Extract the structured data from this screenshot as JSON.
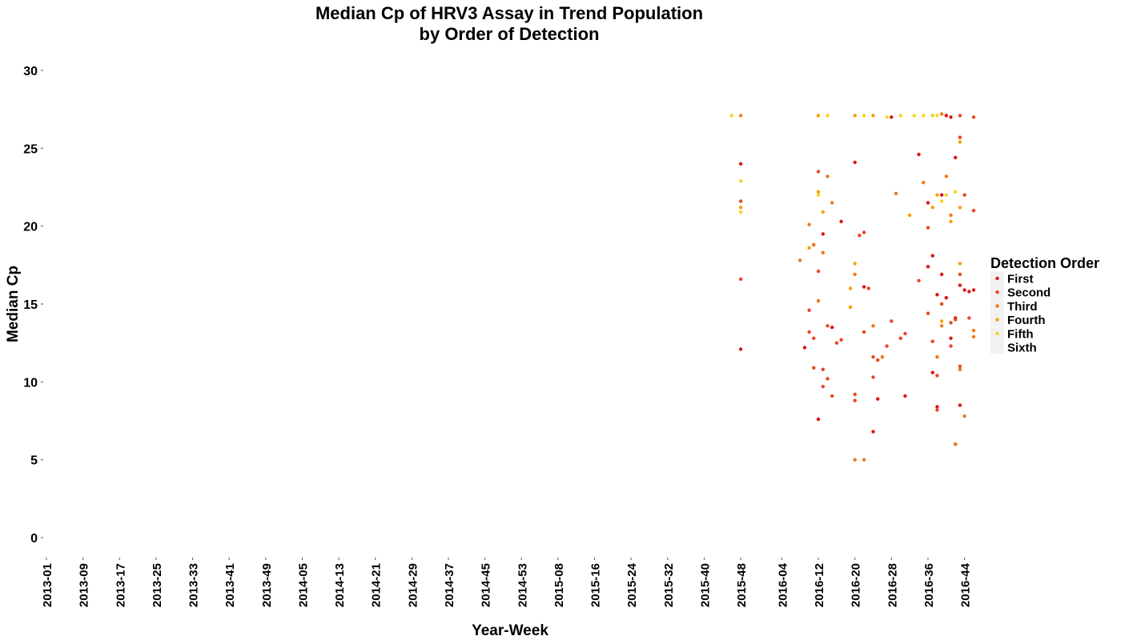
{
  "chart_data": {
    "type": "scatter",
    "title_line1": "Median Cp of HRV3 Assay in Trend Population",
    "title_line2": "by Order of Detection",
    "xlabel": "Year-Week",
    "ylabel": "Median Cp",
    "ylim": [
      0,
      30
    ],
    "yticks": [
      0,
      5,
      10,
      15,
      20,
      25,
      30
    ],
    "xticks": [
      "2013-01",
      "2013-09",
      "2013-17",
      "2013-25",
      "2013-33",
      "2013-41",
      "2013-49",
      "2014-05",
      "2014-13",
      "2014-21",
      "2014-29",
      "2014-37",
      "2014-45",
      "2014-53",
      "2015-08",
      "2015-16",
      "2015-24",
      "2015-32",
      "2015-40",
      "2015-48",
      "2016-04",
      "2016-12",
      "2016-20",
      "2016-28",
      "2016-36",
      "2016-44"
    ],
    "grid": false,
    "legend": {
      "title": "Detection Order",
      "placement": "right",
      "entries": [
        {
          "name": "First",
          "color": "#dd1414"
        },
        {
          "name": "Second",
          "color": "#e8461e"
        },
        {
          "name": "Third",
          "color": "#f07818"
        },
        {
          "name": "Fourth",
          "color": "#f5a000"
        },
        {
          "name": "Fifth",
          "color": "#f8d21e"
        },
        {
          "name": "Sixth",
          "color": "#ececec"
        }
      ]
    },
    "series": [
      {
        "name": "First",
        "color": "#dd1414",
        "points": [
          [
            "2015-48",
            24.0
          ],
          [
            "2015-48",
            12.1
          ],
          [
            "2016-09",
            12.2
          ],
          [
            "2016-11",
            18.8
          ],
          [
            "2016-12",
            7.6
          ],
          [
            "2016-13",
            19.5
          ],
          [
            "2016-15",
            13.5
          ],
          [
            "2016-17",
            20.3
          ],
          [
            "2016-20",
            24.1
          ],
          [
            "2016-22",
            16.1
          ],
          [
            "2016-24",
            6.8
          ],
          [
            "2016-25",
            8.9
          ],
          [
            "2016-31",
            9.1
          ],
          [
            "2016-34",
            24.6
          ],
          [
            "2016-36",
            21.5
          ],
          [
            "2016-37",
            18.1
          ],
          [
            "2016-37",
            10.6
          ],
          [
            "2016-38",
            15.6
          ],
          [
            "2016-38",
            8.4
          ],
          [
            "2016-39",
            22.0
          ],
          [
            "2016-39",
            16.9
          ],
          [
            "2016-40",
            15.4
          ],
          [
            "2016-41",
            12.8
          ],
          [
            "2016-42",
            24.4
          ],
          [
            "2016-42",
            14.1
          ],
          [
            "2016-43",
            16.2
          ],
          [
            "2016-44",
            15.9
          ],
          [
            "2016-45",
            15.8
          ],
          [
            "2016-46",
            15.9
          ],
          [
            "2016-43",
            8.5
          ],
          [
            "2016-36",
            17.4
          ],
          [
            "2016-41",
            27.0
          ],
          [
            "2016-28",
            27.0
          ],
          [
            "2016-40",
            27.1
          ]
        ]
      },
      {
        "name": "Second",
        "color": "#e8461e",
        "points": [
          [
            "2015-48",
            21.6
          ],
          [
            "2015-48",
            16.6
          ],
          [
            "2016-10",
            13.2
          ],
          [
            "2016-10",
            14.6
          ],
          [
            "2016-11",
            12.8
          ],
          [
            "2016-11",
            10.9
          ],
          [
            "2016-12",
            23.5
          ],
          [
            "2016-12",
            17.1
          ],
          [
            "2016-13",
            10.8
          ],
          [
            "2016-13",
            9.7
          ],
          [
            "2016-14",
            10.2
          ],
          [
            "2016-14",
            13.6
          ],
          [
            "2016-15",
            9.1
          ],
          [
            "2016-16",
            12.5
          ],
          [
            "2016-17",
            12.7
          ],
          [
            "2016-20",
            9.2
          ],
          [
            "2016-20",
            8.8
          ],
          [
            "2016-21",
            19.4
          ],
          [
            "2016-22",
            13.2
          ],
          [
            "2016-22",
            19.6
          ],
          [
            "2016-23",
            16.0
          ],
          [
            "2016-24",
            10.3
          ],
          [
            "2016-24",
            11.6
          ],
          [
            "2016-25",
            11.4
          ],
          [
            "2016-27",
            12.3
          ],
          [
            "2016-28",
            13.9
          ],
          [
            "2016-30",
            12.8
          ],
          [
            "2016-31",
            13.1
          ],
          [
            "2016-34",
            16.5
          ],
          [
            "2016-36",
            19.9
          ],
          [
            "2016-36",
            14.4
          ],
          [
            "2016-37",
            12.6
          ],
          [
            "2016-38",
            10.4
          ],
          [
            "2016-38",
            8.2
          ],
          [
            "2016-39",
            15.0
          ],
          [
            "2016-41",
            13.8
          ],
          [
            "2016-41",
            12.3
          ],
          [
            "2016-42",
            14.0
          ],
          [
            "2016-42",
            6.0
          ],
          [
            "2016-43",
            16.9
          ],
          [
            "2016-43",
            11.0
          ],
          [
            "2016-44",
            22.0
          ],
          [
            "2016-45",
            14.1
          ],
          [
            "2016-46",
            21.0
          ],
          [
            "2016-43",
            25.7
          ],
          [
            "2016-43",
            27.1
          ],
          [
            "2016-46",
            27.0
          ]
        ]
      },
      {
        "name": "Third",
        "color": "#f07818",
        "points": [
          [
            "2015-48",
            27.1
          ],
          [
            "2016-08",
            17.8
          ],
          [
            "2016-10",
            20.1
          ],
          [
            "2016-11",
            18.8
          ],
          [
            "2016-12",
            15.2
          ],
          [
            "2016-13",
            18.3
          ],
          [
            "2016-14",
            23.2
          ],
          [
            "2016-15",
            21.5
          ],
          [
            "2016-20",
            16.9
          ],
          [
            "2016-20",
            5.0
          ],
          [
            "2016-22",
            5.0
          ],
          [
            "2016-24",
            13.6
          ],
          [
            "2016-26",
            11.6
          ],
          [
            "2016-29",
            22.1
          ],
          [
            "2016-35",
            22.8
          ],
          [
            "2016-38",
            11.6
          ],
          [
            "2016-39",
            13.6
          ],
          [
            "2016-40",
            23.2
          ],
          [
            "2016-41",
            20.7
          ],
          [
            "2016-42",
            6.0
          ],
          [
            "2016-43",
            10.8
          ],
          [
            "2016-44",
            7.8
          ],
          [
            "2016-46",
            12.9
          ],
          [
            "2016-46",
            13.3
          ],
          [
            "2016-39",
            27.2
          ]
        ]
      },
      {
        "name": "Fourth",
        "color": "#f5a000",
        "points": [
          [
            "2015-48",
            21.2
          ],
          [
            "2016-10",
            18.6
          ],
          [
            "2016-12",
            22.2
          ],
          [
            "2016-13",
            20.9
          ],
          [
            "2016-19",
            14.8
          ],
          [
            "2016-19",
            16.0
          ],
          [
            "2016-20",
            17.6
          ],
          [
            "2016-24",
            27.1
          ],
          [
            "2016-32",
            20.7
          ],
          [
            "2016-37",
            21.2
          ],
          [
            "2016-38",
            22.0
          ],
          [
            "2016-39",
            13.9
          ],
          [
            "2016-41",
            20.3
          ],
          [
            "2016-43",
            21.2
          ],
          [
            "2016-43",
            17.6
          ],
          [
            "2016-43",
            25.4
          ],
          [
            "2016-12",
            27.1
          ],
          [
            "2016-20",
            27.1
          ],
          [
            "2016-37",
            27.1
          ]
        ]
      },
      {
        "name": "Fifth",
        "color": "#f8d21e",
        "points": [
          [
            "2015-46",
            27.1
          ],
          [
            "2015-48",
            22.9
          ],
          [
            "2015-48",
            20.9
          ],
          [
            "2016-12",
            22.0
          ],
          [
            "2016-14",
            27.1
          ],
          [
            "2016-22",
            27.1
          ],
          [
            "2016-27",
            27.0
          ],
          [
            "2016-30",
            27.1
          ],
          [
            "2016-33",
            27.1
          ],
          [
            "2016-35",
            27.1
          ],
          [
            "2016-37",
            27.1
          ],
          [
            "2016-38",
            27.1
          ],
          [
            "2016-39",
            21.6
          ],
          [
            "2016-40",
            22.0
          ],
          [
            "2016-42",
            22.2
          ]
        ]
      },
      {
        "name": "Sixth",
        "color": "#ececec",
        "points": []
      }
    ]
  }
}
